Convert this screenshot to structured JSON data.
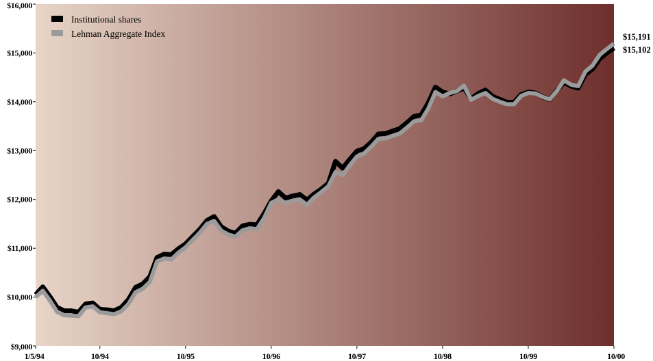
{
  "chart_data": {
    "type": "line",
    "title": "",
    "xlabel": "",
    "ylabel": "",
    "ylim": [
      9000,
      16000
    ],
    "grid": false,
    "legend_position": "top-left",
    "background_gradient": [
      "#e8d5c8",
      "#6e2f2c"
    ],
    "y_ticks": [
      {
        "value": 9000,
        "label": "$9,000"
      },
      {
        "value": 10000,
        "label": "$10,000"
      },
      {
        "value": 11000,
        "label": "$11,000"
      },
      {
        "value": 12000,
        "label": "$12,000"
      },
      {
        "value": 13000,
        "label": "$13,000"
      },
      {
        "value": 14000,
        "label": "$14,000"
      },
      {
        "value": 15000,
        "label": "$15,000"
      },
      {
        "value": 16000,
        "label": "$16,000"
      }
    ],
    "x_ticks": [
      {
        "index": 0,
        "label": "1/5/94"
      },
      {
        "index": 9,
        "label": "10/94"
      },
      {
        "index": 21,
        "label": "10/95"
      },
      {
        "index": 33,
        "label": "10/96"
      },
      {
        "index": 45,
        "label": "10/97"
      },
      {
        "index": 57,
        "label": "10/98"
      },
      {
        "index": 69,
        "label": "10/99"
      },
      {
        "index": 81,
        "label": "10/00"
      }
    ],
    "series": [
      {
        "name": "Institutional shares",
        "color": "#000000",
        "end_label": "$15,102",
        "values": [
          10050,
          10210,
          10010,
          9790,
          9720,
          9720,
          9690,
          9860,
          9880,
          9750,
          9740,
          9720,
          9790,
          9950,
          10200,
          10270,
          10420,
          10810,
          10880,
          10870,
          10990,
          11090,
          11240,
          11390,
          11570,
          11650,
          11440,
          11350,
          11310,
          11460,
          11490,
          11480,
          11710,
          11970,
          12160,
          12030,
          12070,
          12100,
          11990,
          12110,
          12210,
          12330,
          12780,
          12640,
          12820,
          12990,
          13040,
          13170,
          13340,
          13350,
          13400,
          13450,
          13570,
          13700,
          13730,
          13980,
          14300,
          14200,
          14160,
          14220,
          14280,
          14060,
          14170,
          14240,
          14110,
          14050,
          13990,
          13990,
          14150,
          14200,
          14180,
          14100,
          14050,
          14230,
          14400,
          14320,
          14280,
          14560,
          14670,
          14880,
          15000,
          15102
        ]
      },
      {
        "name": "Lehman Aggregate Index",
        "color": "#9b9b9b",
        "end_label": "$15,191",
        "values": [
          10000,
          10130,
          9930,
          9700,
          9630,
          9620,
          9610,
          9790,
          9810,
          9690,
          9670,
          9650,
          9710,
          9860,
          10100,
          10170,
          10310,
          10730,
          10790,
          10770,
          10910,
          11020,
          11170,
          11320,
          11500,
          11560,
          11360,
          11280,
          11240,
          11370,
          11410,
          11390,
          11620,
          11930,
          12000,
          11930,
          11970,
          12000,
          11890,
          12040,
          12150,
          12270,
          12560,
          12500,
          12700,
          12880,
          12940,
          13080,
          13240,
          13250,
          13300,
          13350,
          13470,
          13600,
          13620,
          13860,
          14200,
          14110,
          14180,
          14220,
          14330,
          14040,
          14120,
          14180,
          14060,
          14000,
          13950,
          13950,
          14120,
          14180,
          14170,
          14100,
          14050,
          14220,
          14440,
          14350,
          14320,
          14620,
          14740,
          14960,
          15080,
          15191
        ]
      }
    ]
  }
}
